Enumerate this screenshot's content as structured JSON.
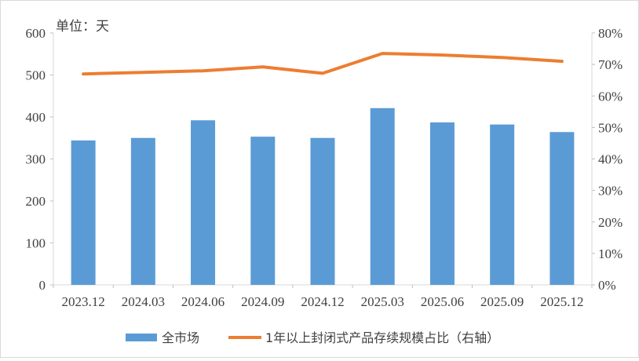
{
  "chart_data": {
    "type": "bar+line",
    "unit_label": "单位：天",
    "categories": [
      "2023.12",
      "2024.03",
      "2024.06",
      "2024.09",
      "2024.12",
      "2025.03",
      "2025.06",
      "2025.09",
      "2025.12"
    ],
    "series": [
      {
        "name": "全市场",
        "type": "bar",
        "axis": "left",
        "color": "#5b9bd5",
        "values": [
          344,
          350,
          392,
          353,
          350,
          421,
          387,
          382,
          364
        ]
      },
      {
        "name": "1年以上封闭式产品存续规模占比（右轴）",
        "type": "line",
        "axis": "right",
        "color": "#ed7d31",
        "values": [
          0.67,
          0.675,
          0.68,
          0.692,
          0.672,
          0.735,
          0.73,
          0.722,
          0.71
        ]
      }
    ],
    "y_left": {
      "min": 0,
      "max": 600,
      "ticks": [
        "0",
        "100",
        "200",
        "300",
        "400",
        "500",
        "600"
      ]
    },
    "y_right": {
      "min": 0,
      "max": 0.8,
      "ticks": [
        "0%",
        "10%",
        "20%",
        "30%",
        "40%",
        "50%",
        "60%",
        "70%",
        "80%"
      ]
    },
    "grid": false,
    "legend_position": "bottom"
  }
}
